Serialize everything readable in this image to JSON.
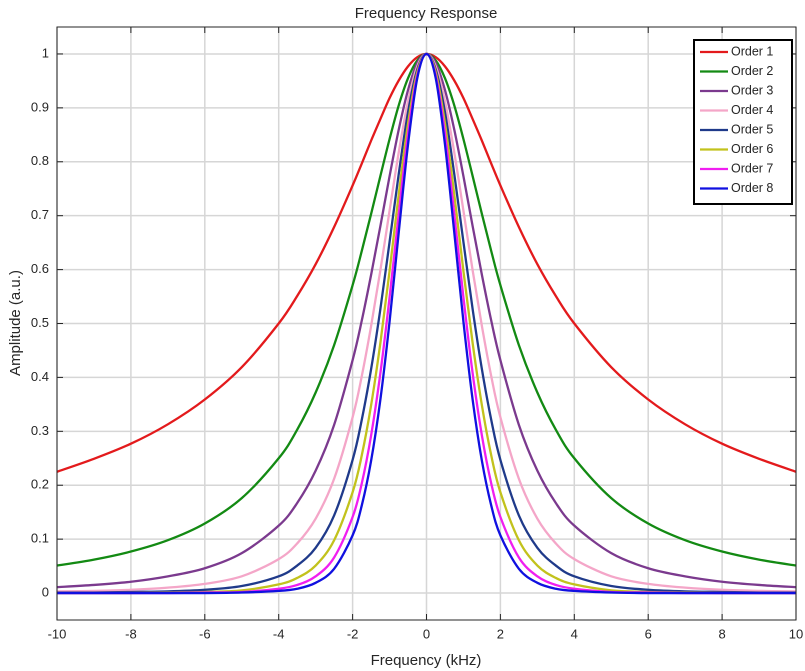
{
  "chart_data": {
    "type": "line",
    "title": "Frequency Response",
    "x_label": "Frequency  (kHz)",
    "y_label": "Amplitude  (a.u.)",
    "x": [
      -10,
      -9,
      -8,
      -7,
      -6,
      -5,
      -4,
      -3.5,
      -3,
      -2.5,
      -2,
      -1.75,
      -1.5,
      -1.25,
      -1,
      -0.75,
      -0.5,
      -0.25,
      0,
      0.25,
      0.5,
      0.75,
      1,
      1.25,
      1.5,
      1.75,
      2,
      2.5,
      3,
      3.5,
      4,
      5,
      6,
      7,
      8,
      9,
      10
    ],
    "series": [
      {
        "name": "Order 1",
        "color": "#e31a1c",
        "values": [
          0.225,
          0.249,
          0.277,
          0.313,
          0.359,
          0.419,
          0.5,
          0.551,
          0.61,
          0.679,
          0.756,
          0.797,
          0.839,
          0.879,
          0.918,
          0.951,
          0.977,
          0.994,
          1,
          0.994,
          0.977,
          0.951,
          0.918,
          0.879,
          0.839,
          0.797,
          0.756,
          0.679,
          0.61,
          0.551,
          0.5,
          0.419,
          0.359,
          0.313,
          0.277,
          0.249,
          0.225
        ]
      },
      {
        "name": "Order 2",
        "color": "#138a13",
        "values": [
          0.051,
          0.062,
          0.077,
          0.098,
          0.129,
          0.176,
          0.25,
          0.303,
          0.372,
          0.46,
          0.571,
          0.635,
          0.703,
          0.773,
          0.842,
          0.905,
          0.955,
          0.988,
          1,
          0.988,
          0.955,
          0.905,
          0.842,
          0.773,
          0.703,
          0.635,
          0.571,
          0.46,
          0.372,
          0.303,
          0.25,
          0.176,
          0.129,
          0.098,
          0.077,
          0.062,
          0.051
        ]
      },
      {
        "name": "Order 3",
        "color": "#7b3a8e",
        "values": [
          0.011,
          0.015,
          0.021,
          0.031,
          0.046,
          0.074,
          0.125,
          0.167,
          0.227,
          0.312,
          0.432,
          0.506,
          0.59,
          0.68,
          0.773,
          0.86,
          0.933,
          0.983,
          1,
          0.983,
          0.933,
          0.86,
          0.773,
          0.68,
          0.59,
          0.506,
          0.432,
          0.312,
          0.227,
          0.167,
          0.125,
          0.074,
          0.046,
          0.031,
          0.021,
          0.015,
          0.011
        ]
      },
      {
        "name": "Order 4",
        "color": "#f4a6c8",
        "values": [
          0.003,
          0.004,
          0.006,
          0.01,
          0.017,
          0.031,
          0.063,
          0.092,
          0.138,
          0.212,
          0.326,
          0.403,
          0.495,
          0.598,
          0.709,
          0.818,
          0.912,
          0.977,
          1,
          0.977,
          0.912,
          0.818,
          0.709,
          0.598,
          0.495,
          0.403,
          0.326,
          0.212,
          0.138,
          0.092,
          0.063,
          0.031,
          0.017,
          0.01,
          0.006,
          0.004,
          0.003
        ]
      },
      {
        "name": "Order 5",
        "color": "#1f3a8a",
        "values": [
          0.001,
          0.001,
          0.002,
          0.003,
          0.006,
          0.013,
          0.031,
          0.051,
          0.084,
          0.144,
          0.247,
          0.322,
          0.415,
          0.526,
          0.651,
          0.778,
          0.892,
          0.971,
          1,
          0.971,
          0.892,
          0.778,
          0.651,
          0.526,
          0.415,
          0.322,
          0.247,
          0.144,
          0.084,
          0.051,
          0.031,
          0.013,
          0.006,
          0.003,
          0.002,
          0.001,
          0.001
        ]
      },
      {
        "name": "Order 6",
        "color": "#c2c21c",
        "values": [
          0,
          0,
          0,
          0.001,
          0.002,
          0.005,
          0.016,
          0.028,
          0.051,
          0.098,
          0.187,
          0.256,
          0.348,
          0.463,
          0.597,
          0.74,
          0.871,
          0.966,
          1,
          0.966,
          0.871,
          0.74,
          0.597,
          0.463,
          0.348,
          0.256,
          0.187,
          0.098,
          0.051,
          0.028,
          0.016,
          0.005,
          0.002,
          0.001,
          0,
          0,
          0
        ]
      },
      {
        "name": "Order 7",
        "color": "#f01ef0",
        "values": [
          0,
          0,
          0,
          0,
          0.001,
          0.002,
          0.008,
          0.015,
          0.031,
          0.066,
          0.141,
          0.204,
          0.292,
          0.407,
          0.548,
          0.704,
          0.852,
          0.96,
          1,
          0.96,
          0.852,
          0.704,
          0.548,
          0.407,
          0.292,
          0.204,
          0.141,
          0.066,
          0.031,
          0.015,
          0.008,
          0.002,
          0.001,
          0,
          0,
          0,
          0
        ]
      },
      {
        "name": "Order 8",
        "color": "#1010e0",
        "values": [
          0,
          0,
          0,
          0,
          0,
          0.001,
          0.004,
          0.008,
          0.019,
          0.045,
          0.107,
          0.163,
          0.245,
          0.358,
          0.503,
          0.67,
          0.832,
          0.955,
          1,
          0.955,
          0.832,
          0.67,
          0.503,
          0.358,
          0.245,
          0.163,
          0.107,
          0.045,
          0.019,
          0.008,
          0.004,
          0.001,
          0,
          0,
          0,
          0,
          0
        ]
      }
    ],
    "xlim": [
      -10,
      10
    ],
    "xticks": [
      -10,
      -8,
      -6,
      -4,
      -2,
      0,
      2,
      4,
      6,
      8,
      10
    ],
    "ylim": [
      -0.05,
      1.05
    ],
    "yticks": [
      0,
      0.1,
      0.2,
      0.3,
      0.4,
      0.5,
      0.6,
      0.7,
      0.8,
      0.9,
      1
    ],
    "grid": true,
    "legend": "northeast"
  }
}
